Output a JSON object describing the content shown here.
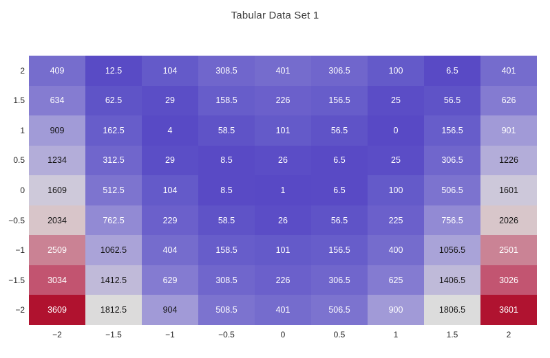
{
  "title": "Tabular Data Set 1",
  "chart_data": {
    "type": "heatmap",
    "title": "Tabular Data Set 1",
    "x_tick_labels": [
      "−2",
      "−1.5",
      "−1",
      "−0.5",
      "0",
      "0.5",
      "1",
      "1.5",
      "2"
    ],
    "y_tick_labels": [
      "2",
      "1.5",
      "1",
      "0.5",
      "0",
      "−0.5",
      "−1",
      "−1.5",
      "−2"
    ],
    "rows_top_to_bottom": true,
    "values": [
      [
        409,
        12.5,
        104,
        308.5,
        401,
        306.5,
        100,
        6.5,
        401
      ],
      [
        634,
        62.5,
        29,
        158.5,
        226,
        156.5,
        25,
        56.5,
        626
      ],
      [
        909,
        162.5,
        4,
        58.5,
        101,
        56.5,
        0,
        156.5,
        901
      ],
      [
        1234,
        312.5,
        29,
        8.5,
        26,
        6.5,
        25,
        306.5,
        1226
      ],
      [
        1609,
        512.5,
        104,
        8.5,
        1,
        6.5,
        100,
        506.5,
        1601
      ],
      [
        2034,
        762.5,
        229,
        58.5,
        26,
        56.5,
        225,
        756.5,
        2026
      ],
      [
        2509,
        1062.5,
        404,
        158.5,
        101,
        156.5,
        400,
        1056.5,
        2501
      ],
      [
        3034,
        1412.5,
        629,
        308.5,
        226,
        306.5,
        625,
        1406.5,
        3026
      ],
      [
        3609,
        1812.5,
        904,
        508.5,
        401,
        506.5,
        900,
        1806.5,
        3601
      ]
    ],
    "cell_labels": [
      [
        "409",
        "12.5",
        "104",
        "308.5",
        "401",
        "306.5",
        "100",
        "6.5",
        "401"
      ],
      [
        "634",
        "62.5",
        "29",
        "158.5",
        "226",
        "156.5",
        "25",
        "56.5",
        "626"
      ],
      [
        "909",
        "162.5",
        "4",
        "58.5",
        "101",
        "56.5",
        "0",
        "156.5",
        "901"
      ],
      [
        "1234",
        "312.5",
        "29",
        "8.5",
        "26",
        "6.5",
        "25",
        "306.5",
        "1226"
      ],
      [
        "1609",
        "512.5",
        "104",
        "8.5",
        "1",
        "6.5",
        "100",
        "506.5",
        "1601"
      ],
      [
        "2034",
        "762.5",
        "229",
        "58.5",
        "26",
        "56.5",
        "225",
        "756.5",
        "2026"
      ],
      [
        "2509",
        "1062.5",
        "404",
        "158.5",
        "101",
        "156.5",
        "400",
        "1056.5",
        "2501"
      ],
      [
        "3034",
        "1412.5",
        "629",
        "308.5",
        "226",
        "306.5",
        "625",
        "1406.5",
        "3026"
      ],
      [
        "3609",
        "1812.5",
        "904",
        "508.5",
        "401",
        "506.5",
        "900",
        "1806.5",
        "3601"
      ]
    ],
    "vmin": 0,
    "vmax": 3609,
    "colormap_stops": [
      {
        "t": 0.0,
        "color": "#5849C5"
      },
      {
        "t": 0.028,
        "color": "#645AC9"
      },
      {
        "t": 0.0623,
        "color": "#6B60CB"
      },
      {
        "t": 0.1108,
        "color": "#756CCD"
      },
      {
        "t": 0.1732,
        "color": "#847BD1"
      },
      {
        "t": 0.2494,
        "color": "#A19AD7"
      },
      {
        "t": 0.3419,
        "color": "#B3ADD9"
      },
      {
        "t": 0.4458,
        "color": "#CEC9DA"
      },
      {
        "t": 0.5,
        "color": "#DCDCDC"
      },
      {
        "t": 0.5635,
        "color": "#D8C5C9"
      },
      {
        "t": 0.6952,
        "color": "#CA8294"
      },
      {
        "t": 0.8407,
        "color": "#C25470"
      },
      {
        "t": 1.0,
        "color": "#B0122F"
      }
    ],
    "dark_text_value_range": [
      903,
      2200
    ],
    "dark_text_color": "#141414",
    "light_text_color": "#ffffff",
    "grid": false,
    "legend": false
  }
}
